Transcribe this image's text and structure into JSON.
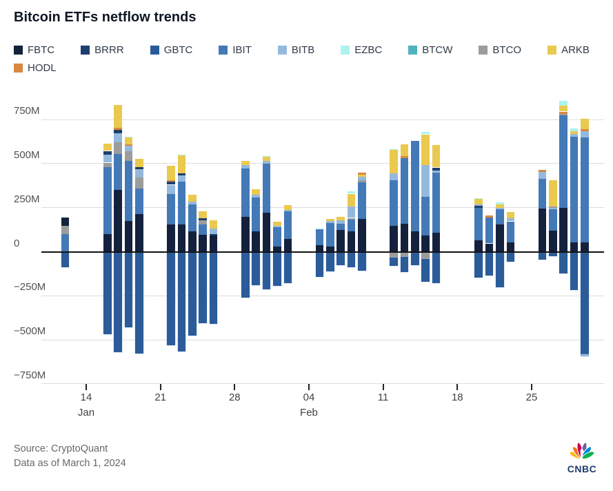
{
  "page": {
    "title": "Bitcoin ETFs netflow trends"
  },
  "footer": {
    "source": "Source: CryptoQuant",
    "as_of": "Data as of March 1, 2024",
    "logo_text": "CNBC"
  },
  "chart_data": {
    "type": "bar",
    "stacked": true,
    "title": "Bitcoin ETFs netflow trends",
    "unit": "USD millions (net flow per trading day)",
    "grid": true,
    "legend_position": "top",
    "series": [
      {
        "name": "FBTC",
        "color": "#14213D"
      },
      {
        "name": "BRRR",
        "color": "#1D3E6E"
      },
      {
        "name": "GBTC",
        "color": "#2B5C99"
      },
      {
        "name": "IBIT",
        "color": "#4379B7"
      },
      {
        "name": "BITB",
        "color": "#95B9DC"
      },
      {
        "name": "EZBC",
        "color": "#ADF2F1"
      },
      {
        "name": "BTCW",
        "color": "#50B4BF"
      },
      {
        "name": "BTCO",
        "color": "#9C9C9C"
      },
      {
        "name": "ARKB",
        "color": "#EAC94F"
      },
      {
        "name": "HODL",
        "color": "#D8893F"
      }
    ],
    "y_axis": {
      "range": [
        -780,
        870
      ],
      "ticks": [
        {
          "value": 750,
          "label": "750M"
        },
        {
          "value": 500,
          "label": "500M"
        },
        {
          "value": 250,
          "label": "250M"
        },
        {
          "value": 0,
          "label": "0"
        },
        {
          "value": -250,
          "label": "−250M"
        },
        {
          "value": -500,
          "label": "−500M"
        },
        {
          "value": -750,
          "label": "−750M"
        }
      ]
    },
    "x_axis": {
      "note": "day = trading-day position index (days since Jan 10, 2024)",
      "ticks": [
        {
          "day": 4,
          "label": "14",
          "month": "Jan"
        },
        {
          "day": 11,
          "label": "21",
          "month": ""
        },
        {
          "day": 18,
          "label": "28",
          "month": ""
        },
        {
          "day": 25,
          "label": "04",
          "month": "Feb"
        },
        {
          "day": 32,
          "label": "11",
          "month": ""
        },
        {
          "day": 39,
          "label": "18",
          "month": ""
        },
        {
          "day": 46,
          "label": "25",
          "month": ""
        }
      ]
    },
    "bars": [
      {
        "day": 2,
        "pos": [
          [
            "IBIT",
            100
          ],
          [
            "BTCO",
            46
          ],
          [
            "FBTC",
            47
          ]
        ],
        "neg": [
          [
            "GBTC",
            89
          ]
        ]
      },
      {
        "day": 6,
        "pos": [
          [
            "FBTC",
            100
          ],
          [
            "IBIT",
            379
          ],
          [
            "BTCO",
            26
          ],
          [
            "BITB",
            46
          ],
          [
            "BRRR",
            21
          ],
          [
            "ARKB",
            40
          ]
        ],
        "neg": [
          [
            "GBTC",
            468
          ]
        ]
      },
      {
        "day": 7,
        "pos": [
          [
            "FBTC",
            351
          ],
          [
            "IBIT",
            205
          ],
          [
            "BTCO",
            65
          ],
          [
            "BITB",
            49
          ],
          [
            "BRRR",
            23
          ],
          [
            "HODL",
            10
          ],
          [
            "ARKB",
            130
          ]
        ],
        "neg": [
          [
            "GBTC",
            569
          ]
        ]
      },
      {
        "day": 8,
        "pos": [
          [
            "FBTC",
            174
          ],
          [
            "IBIT",
            340
          ],
          [
            "BTCO",
            56
          ],
          [
            "BITB",
            30
          ],
          [
            "HODL",
            8
          ],
          [
            "ARKB",
            42
          ],
          [
            "EZBC",
            4
          ]
        ],
        "neg": [
          [
            "GBTC",
            427
          ]
        ]
      },
      {
        "day": 9,
        "pos": [
          [
            "FBTC",
            213
          ],
          [
            "IBIT",
            146
          ],
          [
            "BTCO",
            61
          ],
          [
            "BITB",
            48
          ],
          [
            "BRRR",
            13
          ],
          [
            "ARKB",
            47
          ]
        ],
        "neg": [
          [
            "GBTC",
            579
          ]
        ]
      },
      {
        "day": 12,
        "pos": [
          [
            "FBTC",
            153
          ],
          [
            "IBIT",
            176
          ],
          [
            "BITB",
            51
          ],
          [
            "BRRR",
            17
          ],
          [
            "HODL",
            9
          ],
          [
            "ARKB",
            82
          ]
        ],
        "neg": [
          [
            "GBTC",
            531
          ]
        ]
      },
      {
        "day": 13,
        "pos": [
          [
            "FBTC",
            153
          ],
          [
            "IBIT",
            246
          ],
          [
            "BITB",
            33
          ],
          [
            "BRRR",
            13
          ],
          [
            "ARKB",
            100
          ],
          [
            "EZBC",
            4
          ]
        ],
        "neg": [
          [
            "GBTC",
            566
          ]
        ]
      },
      {
        "day": 14,
        "pos": [
          [
            "FBTC",
            117
          ],
          [
            "IBIT",
            153
          ],
          [
            "BITB",
            13
          ],
          [
            "ARKB",
            39
          ]
        ],
        "neg": [
          [
            "GBTC",
            477
          ]
        ]
      },
      {
        "day": 15,
        "pos": [
          [
            "FBTC",
            95
          ],
          [
            "IBIT",
            58
          ],
          [
            "BTCO",
            24
          ],
          [
            "BRRR",
            13
          ],
          [
            "ARKB",
            41
          ]
        ],
        "neg": [
          [
            "GBTC",
            406
          ]
        ]
      },
      {
        "day": 16,
        "pos": [
          [
            "FBTC",
            91
          ],
          [
            "BRRR",
            10
          ],
          [
            "BITB",
            29
          ],
          [
            "ARKB",
            47
          ]
        ],
        "neg": [
          [
            "GBTC",
            410
          ]
        ]
      },
      {
        "day": 19,
        "pos": [
          [
            "FBTC",
            198
          ],
          [
            "IBIT",
            273
          ],
          [
            "BITB",
            19
          ],
          [
            "ARKB",
            24
          ]
        ],
        "neg": [
          [
            "GBTC",
            259
          ]
        ]
      },
      {
        "day": 20,
        "pos": [
          [
            "FBTC",
            114
          ],
          [
            "IBIT",
            192
          ],
          [
            "BITB",
            18
          ],
          [
            "ARKB",
            30
          ]
        ],
        "neg": [
          [
            "GBTC",
            188
          ]
        ]
      },
      {
        "day": 21,
        "pos": [
          [
            "FBTC",
            221
          ],
          [
            "IBIT",
            280
          ],
          [
            "BITB",
            14
          ],
          [
            "ARKB",
            24
          ],
          [
            "EZBC",
            4
          ]
        ],
        "neg": [
          [
            "GBTC",
            214
          ]
        ]
      },
      {
        "day": 22,
        "pos": [
          [
            "FBTC",
            30
          ],
          [
            "IBIT",
            108
          ],
          [
            "BITB",
            9
          ],
          [
            "ARKB",
            22
          ]
        ],
        "neg": [
          [
            "GBTC",
            192
          ]
        ]
      },
      {
        "day": 23,
        "pos": [
          [
            "FBTC",
            74
          ],
          [
            "IBIT",
            154
          ],
          [
            "BITB",
            10
          ],
          [
            "ARKB",
            25
          ]
        ],
        "neg": [
          [
            "GBTC",
            179
          ]
        ]
      },
      {
        "day": 26,
        "pos": [
          [
            "FBTC",
            37
          ],
          [
            "IBIT",
            89
          ],
          [
            "EZBC",
            4
          ]
        ],
        "neg": [
          [
            "GBTC",
            141
          ]
        ]
      },
      {
        "day": 27,
        "pos": [
          [
            "FBTC",
            30
          ],
          [
            "IBIT",
            134
          ],
          [
            "BITB",
            9
          ],
          [
            "ARKB",
            13
          ]
        ],
        "neg": [
          [
            "GBTC",
            112
          ]
        ]
      },
      {
        "day": 28,
        "pos": [
          [
            "FBTC",
            125
          ],
          [
            "IBIT",
            35
          ],
          [
            "BITB",
            19
          ],
          [
            "ARKB",
            20
          ]
        ],
        "neg": [
          [
            "GBTC",
            78
          ]
        ]
      },
      {
        "day": 29,
        "pos": [
          [
            "FBTC",
            117
          ],
          [
            "IBIT",
            65
          ],
          [
            "BTCO",
            10
          ],
          [
            "BITB",
            63
          ],
          [
            "ARKB",
            74
          ],
          [
            "EZBC",
            12
          ]
        ],
        "neg": [
          [
            "GBTC",
            87
          ]
        ]
      },
      {
        "day": 30,
        "pos": [
          [
            "FBTC",
            186
          ],
          [
            "IBIT",
            207
          ],
          [
            "BTCO",
            13
          ],
          [
            "BITB",
            20
          ],
          [
            "ARKB",
            10
          ],
          [
            "HODL",
            13
          ]
        ],
        "neg": [
          [
            "GBTC",
            106
          ]
        ]
      },
      {
        "day": 33,
        "pos": [
          [
            "FBTC",
            147
          ],
          [
            "IBIT",
            260
          ],
          [
            "BITB",
            38
          ],
          [
            "ARKB",
            131
          ],
          [
            "EZBC",
            4
          ]
        ],
        "neg": [
          [
            "BTCO",
            35
          ],
          [
            "GBTC",
            45
          ]
        ]
      },
      {
        "day": 34,
        "pos": [
          [
            "FBTC",
            160
          ],
          [
            "IBIT",
            370
          ],
          [
            "HODL",
            11
          ],
          [
            "ARKB",
            70
          ]
        ],
        "neg": [
          [
            "BTCO",
            28
          ],
          [
            "GBTC",
            89
          ]
        ]
      },
      {
        "day": 35,
        "pos": [
          [
            "FBTC",
            117
          ],
          [
            "IBIT",
            510
          ]
        ],
        "neg": [
          [
            "GBTC",
            78
          ]
        ]
      },
      {
        "day": 36,
        "pos": [
          [
            "FBTC",
            91
          ],
          [
            "IBIT",
            220
          ],
          [
            "BITB",
            179
          ],
          [
            "ARKB",
            176
          ],
          [
            "EZBC",
            13
          ]
        ],
        "neg": [
          [
            "BTCO",
            41
          ],
          [
            "GBTC",
            128
          ]
        ]
      },
      {
        "day": 37,
        "pos": [
          [
            "FBTC",
            108
          ],
          [
            "IBIT",
            342
          ],
          [
            "BITB",
            12
          ],
          [
            "BRRR",
            16
          ],
          [
            "ARKB",
            128
          ]
        ],
        "neg": [
          [
            "GBTC",
            178
          ]
        ]
      },
      {
        "day": 41,
        "pos": [
          [
            "FBTC",
            65
          ],
          [
            "IBIT",
            182
          ],
          [
            "BRRR",
            12
          ],
          [
            "BITB",
            8
          ],
          [
            "ARKB",
            32
          ],
          [
            "EZBC",
            3
          ]
        ],
        "neg": [
          [
            "GBTC",
            148
          ]
        ]
      },
      {
        "day": 42,
        "pos": [
          [
            "FBTC",
            47
          ],
          [
            "IBIT",
            148
          ],
          [
            "HODL",
            10
          ]
        ],
        "neg": [
          [
            "GBTC",
            135
          ]
        ]
      },
      {
        "day": 43,
        "pos": [
          [
            "FBTC",
            156
          ],
          [
            "IBIT",
            85
          ],
          [
            "BITB",
            6
          ],
          [
            "ARKB",
            20
          ],
          [
            "EZBC",
            13
          ]
        ],
        "neg": [
          [
            "GBTC",
            200
          ]
        ]
      },
      {
        "day": 44,
        "pos": [
          [
            "FBTC",
            52
          ],
          [
            "IBIT",
            120
          ],
          [
            "BITB",
            17
          ],
          [
            "ARKB",
            35
          ]
        ],
        "neg": [
          [
            "GBTC",
            57
          ]
        ]
      },
      {
        "day": 47,
        "pos": [
          [
            "FBTC",
            246
          ],
          [
            "IBIT",
            169
          ],
          [
            "BITB",
            36
          ],
          [
            "HODL",
            13
          ]
        ],
        "neg": [
          [
            "GBTC",
            45
          ]
        ]
      },
      {
        "day": 48,
        "pos": [
          [
            "FBTC",
            121
          ],
          [
            "IBIT",
            120
          ],
          [
            "BITB",
            8
          ],
          [
            "BTCO",
            8
          ],
          [
            "ARKB",
            149
          ]
        ],
        "neg": [
          [
            "GBTC",
            25
          ]
        ]
      },
      {
        "day": 49,
        "pos": [
          [
            "FBTC",
            250
          ],
          [
            "IBIT",
            523
          ],
          [
            "BTCO",
            9
          ],
          [
            "HODL",
            13
          ],
          [
            "ARKB",
            35
          ],
          [
            "EZBC",
            26
          ]
        ],
        "neg": [
          [
            "GBTC",
            122
          ]
        ]
      },
      {
        "day": 50,
        "pos": [
          [
            "FBTC",
            52
          ],
          [
            "IBIT",
            600
          ],
          [
            "BITB",
            17
          ],
          [
            "ARKB",
            16
          ],
          [
            "EZBC",
            15
          ]
        ],
        "neg": [
          [
            "GBTC",
            217
          ]
        ]
      },
      {
        "day": 51,
        "pos": [
          [
            "FBTC",
            52
          ],
          [
            "IBIT",
            596
          ],
          [
            "BITB",
            34
          ],
          [
            "HODL",
            13
          ],
          [
            "ARKB",
            61
          ]
        ],
        "neg": [
          [
            "GBTC",
            583
          ],
          [
            "BITB",
            10
          ]
        ]
      }
    ]
  }
}
